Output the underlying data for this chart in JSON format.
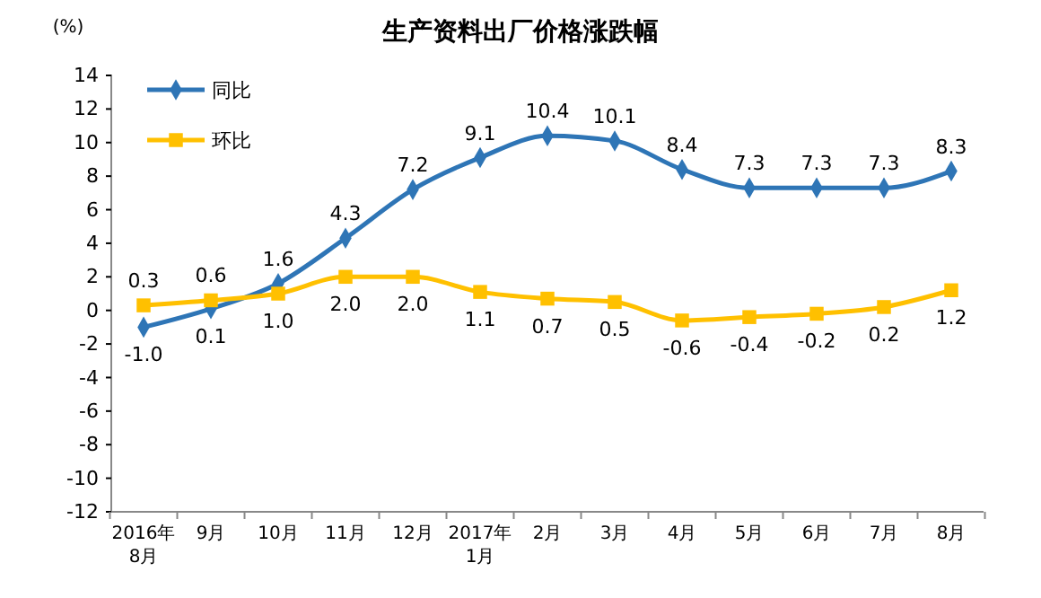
{
  "chart_data": {
    "type": "line",
    "title": "生产资料出厂价格涨跌幅",
    "ylabel": "(%)",
    "categories": [
      "2016年\n8月",
      "9月",
      "10月",
      "11月",
      "12月",
      "2017年\n1月",
      "2月",
      "3月",
      "4月",
      "5月",
      "6月",
      "7月",
      "8月"
    ],
    "ylim": [
      -12,
      14
    ],
    "yticks": [
      -12,
      -10,
      -8,
      -6,
      -4,
      -2,
      0,
      2,
      4,
      6,
      8,
      10,
      12,
      14
    ],
    "grid": false,
    "legend": "top left",
    "series": [
      {
        "name": "同比",
        "color": "#2e75b6",
        "marker": "diamond",
        "values": [
          -1.0,
          0.1,
          1.6,
          4.3,
          7.2,
          9.1,
          10.4,
          10.1,
          8.4,
          7.3,
          7.3,
          7.3,
          8.3
        ],
        "value_labels": [
          "-1.0",
          "0.1",
          "1.6",
          "4.3",
          "7.2",
          "9.1",
          "10.4",
          "10.1",
          "8.4",
          "7.3",
          "7.3",
          "7.3",
          "8.3"
        ]
      },
      {
        "name": "环比",
        "color": "#ffc000",
        "marker": "square",
        "values": [
          0.3,
          0.6,
          1.0,
          2.0,
          2.0,
          1.1,
          0.7,
          0.5,
          -0.6,
          -0.4,
          -0.2,
          0.2,
          1.2
        ],
        "value_labels": [
          "0.3",
          "0.6",
          "1.0",
          "2.0",
          "2.0",
          "1.1",
          "0.7",
          "0.5",
          "-0.6",
          "-0.4",
          "-0.2",
          "0.2",
          "1.2"
        ]
      }
    ]
  }
}
